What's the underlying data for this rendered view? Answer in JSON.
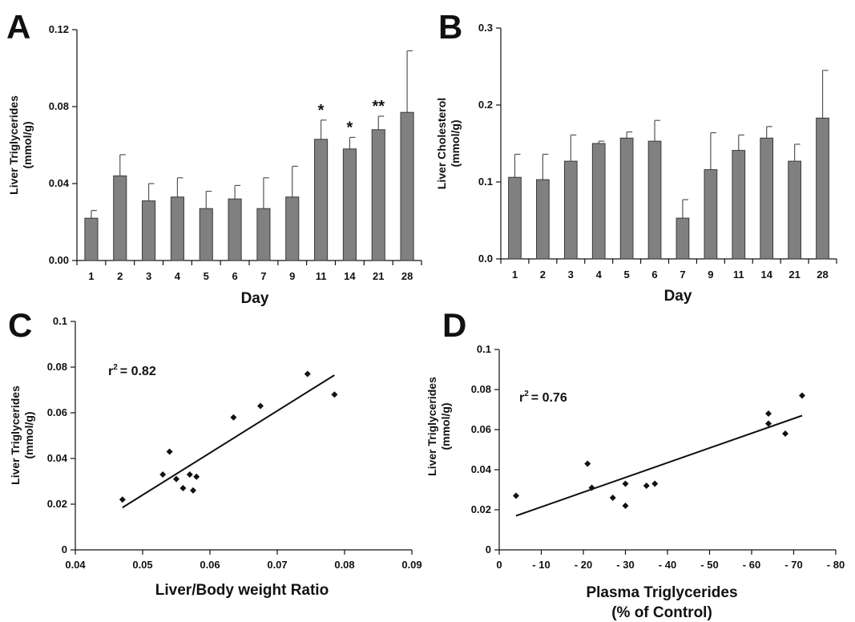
{
  "chart_data": [
    {
      "panel": "A",
      "type": "bar",
      "categories": [
        "1",
        "2",
        "3",
        "4",
        "5",
        "6",
        "7",
        "9",
        "11",
        "14",
        "21",
        "28"
      ],
      "values": [
        0.022,
        0.044,
        0.031,
        0.033,
        0.027,
        0.032,
        0.027,
        0.033,
        0.063,
        0.058,
        0.068,
        0.077
      ],
      "errors": [
        0.004,
        0.011,
        0.009,
        0.01,
        0.009,
        0.007,
        0.016,
        0.016,
        0.01,
        0.006,
        0.007,
        0.032
      ],
      "annotations": [
        "",
        "",
        "",
        "",
        "",
        "",
        "",
        "",
        "*",
        "*",
        "**",
        ""
      ],
      "ylabel": "Liver Triglycerides",
      "yunit": "(mmol/g)",
      "xlabel": "Day",
      "ylim": [
        0,
        0.12
      ],
      "yticks": [
        "0.00",
        "0.04",
        "0.08",
        "0.12"
      ],
      "bar_color": "#808080"
    },
    {
      "panel": "B",
      "type": "bar",
      "categories": [
        "1",
        "2",
        "3",
        "4",
        "5",
        "6",
        "7",
        "9",
        "11",
        "14",
        "21",
        "28"
      ],
      "values": [
        0.106,
        0.103,
        0.127,
        0.15,
        0.157,
        0.153,
        0.053,
        0.116,
        0.141,
        0.157,
        0.127,
        0.183
      ],
      "errors": [
        0.03,
        0.033,
        0.034,
        0.003,
        0.008,
        0.027,
        0.024,
        0.048,
        0.02,
        0.015,
        0.022,
        0.062
      ],
      "ylabel": "Liver Cholesterol",
      "yunit": "(mmol/g)",
      "xlabel": "Day",
      "ylim": [
        0,
        0.3
      ],
      "yticks": [
        "0.0",
        "0.1",
        "0.2",
        "0.3"
      ],
      "bar_color": "#808080"
    },
    {
      "panel": "C",
      "type": "scatter",
      "x": [
        0.047,
        0.053,
        0.054,
        0.055,
        0.056,
        0.057,
        0.0575,
        0.058,
        0.0635,
        0.0675,
        0.0745,
        0.0785
      ],
      "y": [
        0.022,
        0.033,
        0.043,
        0.031,
        0.027,
        0.033,
        0.026,
        0.032,
        0.058,
        0.063,
        0.077,
        0.068
      ],
      "fit_line": {
        "x": [
          0.047,
          0.0785
        ],
        "y": [
          0.0185,
          0.0765
        ]
      },
      "r2_label": "r",
      "r2_value": "= 0.82",
      "ylabel": "Liver Triglycerides",
      "yunit": "(mmol/g)",
      "xlabel": "Liver/Body weight Ratio",
      "xlim": [
        0.04,
        0.09
      ],
      "ylim": [
        0,
        0.1
      ],
      "xticks": [
        "0.04",
        "0.05",
        "0.06",
        "0.07",
        "0.08",
        "0.09"
      ],
      "yticks": [
        "0",
        "0.02",
        "0.04",
        "0.06",
        "0.08",
        "0.1"
      ]
    },
    {
      "panel": "D",
      "type": "scatter",
      "x": [
        4,
        21,
        22,
        27,
        30,
        30,
        35,
        37,
        64,
        64,
        68,
        72
      ],
      "y": [
        0.027,
        0.043,
        0.031,
        0.026,
        0.033,
        0.022,
        0.032,
        0.033,
        0.068,
        0.063,
        0.058,
        0.077
      ],
      "fit_line": {
        "x": [
          4,
          72
        ],
        "y": [
          0.017,
          0.067
        ]
      },
      "r2_label": "r",
      "r2_value": "= 0.76",
      "ylabel": "Liver Triglycerides",
      "yunit": "(mmol/g)",
      "xlabel": "Plasma Triglycerides",
      "xlabel2": "(% of Control)",
      "xlim": [
        0,
        80
      ],
      "ylim": [
        0,
        0.1
      ],
      "xticks": [
        "0",
        "- 10",
        "- 20",
        "- 30",
        "- 40",
        "- 50",
        "- 60",
        "- 70",
        "- 80"
      ],
      "yticks": [
        "0",
        "0.02",
        "0.04",
        "0.06",
        "0.08",
        "0.1"
      ]
    }
  ],
  "panels": {
    "a": {
      "letter": "A"
    },
    "b": {
      "letter": "B"
    },
    "c": {
      "letter": "C",
      "r2_sup": "2"
    },
    "d": {
      "letter": "D",
      "r2_sup": "2"
    }
  },
  "colors": {
    "bar": "#808080",
    "ink": "#111111"
  }
}
